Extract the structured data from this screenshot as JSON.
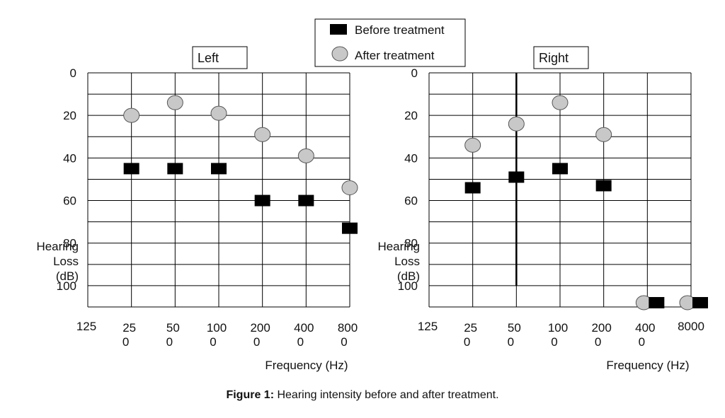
{
  "chart_data": [
    {
      "type": "scatter",
      "title": "Left",
      "ylabel": "Hearing Loss (dB)",
      "xlabel": "Frequency (Hz)",
      "categories": [
        "125",
        "250",
        "500",
        "1000",
        "2000",
        "4000",
        "8000"
      ],
      "x_tick_labels": [
        [
          "125",
          ""
        ],
        [
          "25",
          "0"
        ],
        [
          "50",
          "0"
        ],
        [
          "100",
          "0"
        ],
        [
          "200",
          "0"
        ],
        [
          "400",
          "0"
        ],
        [
          "800",
          "0"
        ]
      ],
      "y_tick_labels": [
        "0",
        "20",
        "40",
        "60",
        "80",
        "100"
      ],
      "ylim": [
        0,
        110
      ],
      "series": [
        {
          "name": "Before treatment",
          "points": [
            {
              "x": "250",
              "y": 45
            },
            {
              "x": "500",
              "y": 45
            },
            {
              "x": "1000",
              "y": 45
            },
            {
              "x": "2000",
              "y": 60
            },
            {
              "x": "4000",
              "y": 60
            },
            {
              "x": "8000",
              "y": 73
            }
          ]
        },
        {
          "name": "After treatment",
          "points": [
            {
              "x": "250",
              "y": 20
            },
            {
              "x": "500",
              "y": 14
            },
            {
              "x": "1000",
              "y": 19
            },
            {
              "x": "2000",
              "y": 29
            },
            {
              "x": "4000",
              "y": 39
            },
            {
              "x": "8000",
              "y": 54
            }
          ]
        }
      ]
    },
    {
      "type": "scatter",
      "title": "Right",
      "ylabel": "Hearing Loss (dB)",
      "xlabel": "Frequency (Hz)",
      "categories": [
        "125",
        "250",
        "500",
        "1000",
        "2000",
        "4000",
        "8000"
      ],
      "x_tick_labels": [
        [
          "125",
          ""
        ],
        [
          "25",
          "0"
        ],
        [
          "50",
          "0"
        ],
        [
          "100",
          "0"
        ],
        [
          "200",
          "0"
        ],
        [
          "400",
          "0"
        ],
        [
          "8000",
          ""
        ]
      ],
      "y_tick_labels": [
        "0",
        "20",
        "40",
        "60",
        "80",
        "100"
      ],
      "ylim": [
        0,
        110
      ],
      "series": [
        {
          "name": "Before treatment",
          "points": [
            {
              "x": "250",
              "y": 54
            },
            {
              "x": "500",
              "y": 49
            },
            {
              "x": "1000",
              "y": 45
            },
            {
              "x": "2000",
              "y": 53
            },
            {
              "x": "4000",
              "y": 108
            },
            {
              "x": "8000",
              "y": 108
            }
          ]
        },
        {
          "name": "After treatment",
          "points": [
            {
              "x": "250",
              "y": 34
            },
            {
              "x": "500",
              "y": 24
            },
            {
              "x": "1000",
              "y": 14
            },
            {
              "x": "2000",
              "y": 29
            },
            {
              "x": "4000",
              "y": 108
            },
            {
              "x": "8000",
              "y": 108
            }
          ]
        }
      ]
    }
  ],
  "legend": {
    "before_label": "Before treatment",
    "after_label": "After treatment"
  },
  "colors": {
    "before": "#000000",
    "after": "#c8c8c8",
    "after_stroke": "#555555",
    "grid": "#000000"
  },
  "caption": {
    "bold": "Figure 1:",
    "text": " Hearing intensity before and after treatment."
  }
}
